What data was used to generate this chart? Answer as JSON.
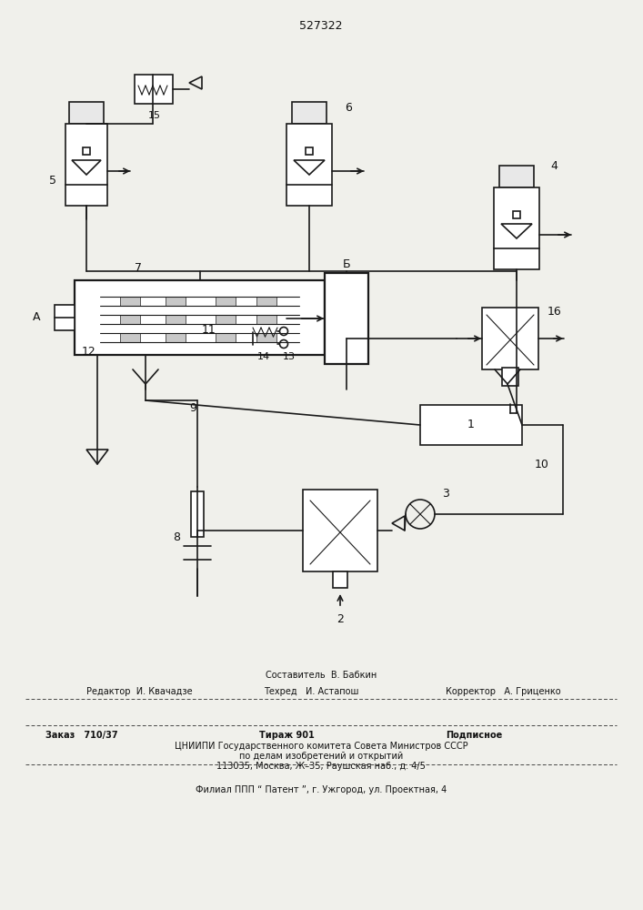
{
  "title_number": "527322",
  "bg_color": "#f0f0eb",
  "line_color": "#1a1a1a",
  "footer_text": {
    "sostavitel": "Составитель  В. Бабкин",
    "redaktor": "Редактор  И. Квачадзе",
    "tehred": "Техред   И. Астапош",
    "korrektor": "Корректор   А. Гриценко",
    "zakaz": "Заказ   710/37",
    "tirazh": "Тираж 901",
    "podpisnoe": "Подписное",
    "cniipи": "ЦНИИПИ Государственного комитета Совета Министров СССР",
    "po_delam": "по делам изобретений и открытий",
    "address": "113035, Москва, Ж–35, Раушская наб., д. 4/5",
    "filial": "Филиал ППП “ Патент ”, г. Ужгород, ул. Проектная, 4"
  }
}
